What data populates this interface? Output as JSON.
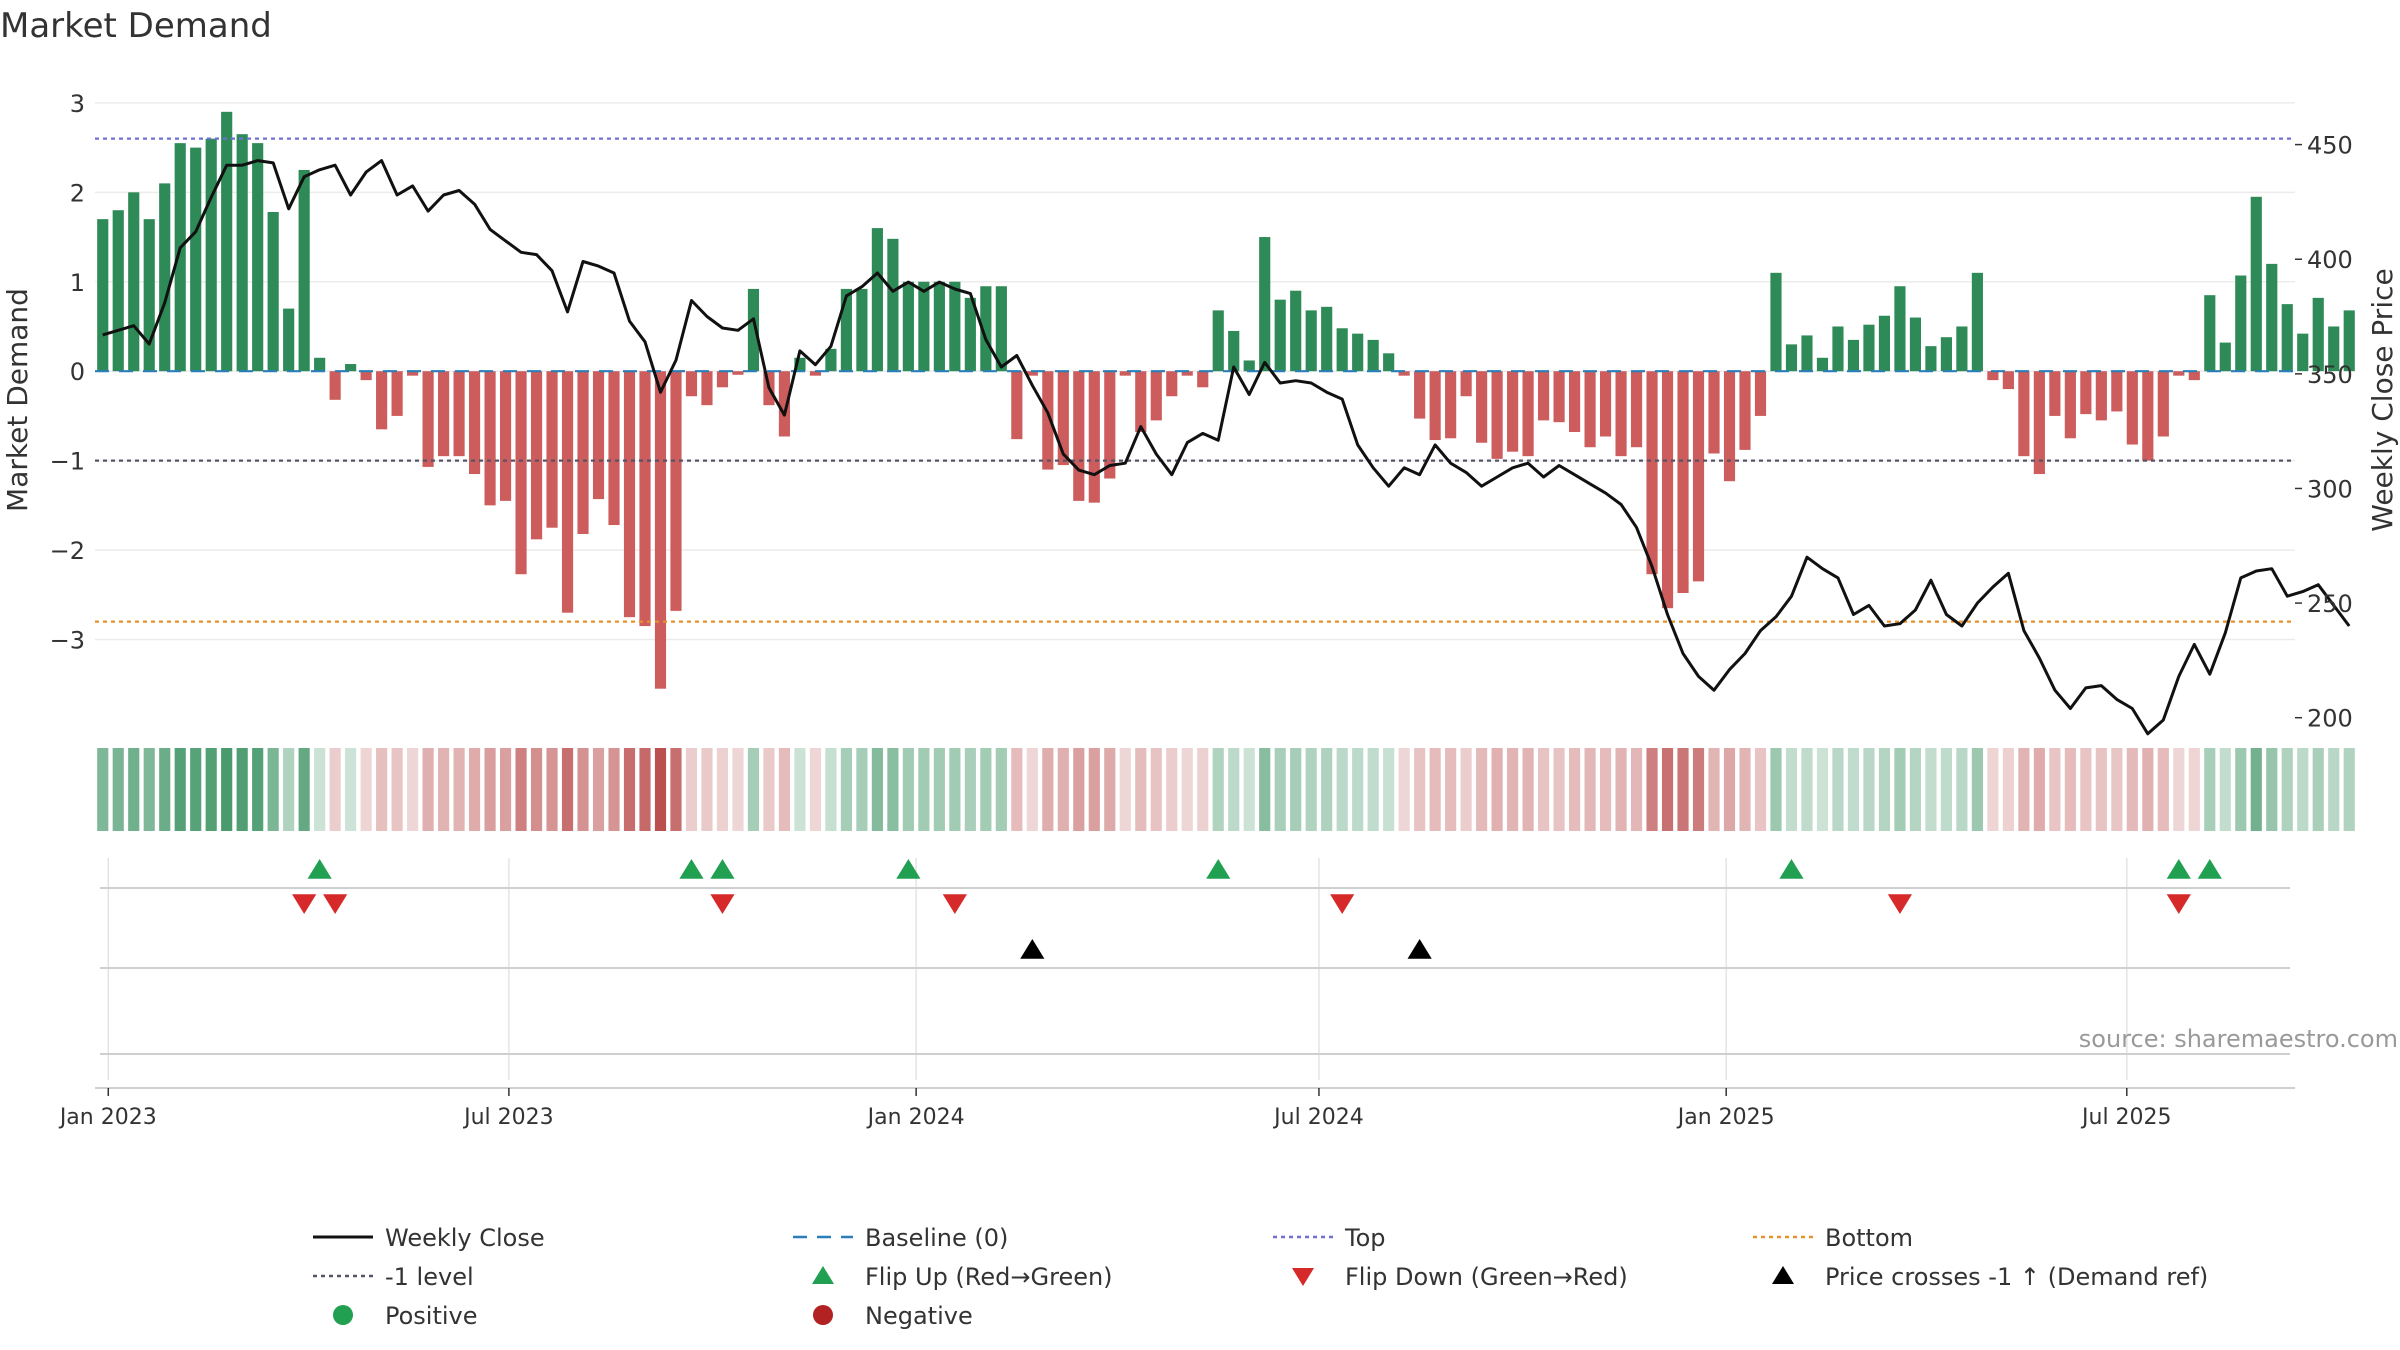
{
  "chart_data": {
    "type": "bar",
    "title": "Market Demand",
    "ylabel": "Market Demand",
    "y2label": "Weekly Close Price",
    "ylim": [
      -3.9,
      3.2
    ],
    "y2lim": [
      199,
      476
    ],
    "yticks": [
      3,
      2,
      1,
      0,
      -1,
      -2,
      -3
    ],
    "ytick_labels": [
      "3",
      "2",
      "1",
      "0",
      "−1",
      "−2",
      "−3"
    ],
    "y2ticks": [
      450,
      400,
      350,
      300,
      250,
      200
    ],
    "ytick2_labels": [
      "450",
      "400",
      "350",
      "300",
      "250",
      "200"
    ],
    "x_start": "2022-12-26",
    "x_end": "2025-09-15",
    "week_start": "2022-12-26",
    "x_ticks": [
      {
        "date": "2023-01-01",
        "label": "Jan 2023"
      },
      {
        "date": "2023-07-01",
        "label": "Jul 2023"
      },
      {
        "date": "2024-01-01",
        "label": "Jan 2024"
      },
      {
        "date": "2024-07-01",
        "label": "Jul 2024"
      },
      {
        "date": "2025-01-01",
        "label": "Jan 2025"
      },
      {
        "date": "2025-07-01",
        "label": "Jul 2025"
      }
    ],
    "reference_lines": {
      "top": 2.6,
      "minus_one": -1.0,
      "bottom": -2.8,
      "baseline": 0
    },
    "series": [
      {
        "name": "Market Demand",
        "values": [
          1.7,
          1.8,
          2.0,
          1.7,
          2.1,
          2.55,
          2.5,
          2.6,
          2.9,
          2.65,
          2.55,
          1.78,
          0.7,
          2.25,
          0.15,
          -0.32,
          0.08,
          -0.1,
          -0.65,
          -0.5,
          -0.05,
          -1.07,
          -0.95,
          -0.95,
          -1.15,
          -1.5,
          -1.45,
          -2.27,
          -1.88,
          -1.75,
          -2.7,
          -1.82,
          -1.43,
          -1.72,
          -2.75,
          -2.85,
          -3.55,
          -2.68,
          -0.28,
          -0.38,
          -0.18,
          -0.04,
          0.92,
          -0.38,
          -0.73,
          0.15,
          -0.05,
          0.25,
          0.92,
          0.92,
          1.6,
          1.48,
          1.0,
          1.0,
          1.0,
          1.0,
          0.82,
          0.95,
          0.95,
          -0.76,
          -0.05,
          -1.1,
          -1.05,
          -1.45,
          -1.47,
          -1.2,
          -0.05,
          -0.68,
          -0.55,
          -0.28,
          -0.05,
          -0.18,
          0.68,
          0.45,
          0.12,
          1.5,
          0.8,
          0.9,
          0.68,
          0.72,
          0.48,
          0.42,
          0.35,
          0.2,
          -0.05,
          -0.53,
          -0.77,
          -0.75,
          -0.28,
          -0.8,
          -0.98,
          -0.9,
          -0.95,
          -0.55,
          -0.57,
          -0.68,
          -0.85,
          -0.73,
          -0.95,
          -0.85,
          -2.27,
          -2.65,
          -2.48,
          -2.35,
          -0.92,
          -1.23,
          -0.88,
          -0.5,
          1.1,
          0.3,
          0.4,
          0.15,
          0.5,
          0.35,
          0.52,
          0.62,
          0.95,
          0.6,
          0.28,
          0.38,
          0.5,
          1.1,
          -0.1,
          -0.2,
          -0.95,
          -1.15,
          -0.5,
          -0.75,
          -0.48,
          -0.55,
          -0.45,
          -0.82,
          -1.0,
          -0.73,
          -0.05,
          -0.1,
          0.85,
          0.32,
          1.07,
          1.95,
          1.2,
          0.75,
          0.42,
          0.82,
          0.5,
          0.68
        ]
      },
      {
        "name": "Weekly Close",
        "values": [
          367,
          369,
          371,
          363,
          381,
          405,
          412,
          427,
          441,
          441,
          443,
          442,
          422,
          436,
          439,
          441,
          428,
          438,
          443,
          428,
          432,
          421,
          428,
          430,
          424,
          413,
          408,
          403,
          402,
          395,
          377,
          399,
          397,
          394,
          373,
          364,
          342,
          356,
          382,
          375,
          370,
          369,
          374,
          344,
          332,
          360,
          354,
          362,
          384,
          388,
          394,
          386,
          390,
          386,
          390,
          387,
          385,
          365,
          353,
          358,
          345,
          333,
          315,
          308,
          306,
          310,
          311,
          327,
          315,
          306,
          320,
          324,
          321,
          353,
          341,
          355,
          346,
          347,
          346,
          342,
          339,
          319,
          309,
          301,
          309,
          306,
          319,
          311,
          307,
          301,
          305,
          309,
          311,
          305,
          310,
          306,
          302,
          298,
          293,
          283,
          266,
          245,
          228,
          218,
          212,
          221,
          228,
          238,
          244,
          253,
          270,
          265,
          261,
          245,
          249,
          240,
          241,
          247,
          260,
          245,
          240,
          250,
          257,
          263,
          238,
          226,
          212,
          204,
          213,
          214,
          208,
          204,
          193,
          199,
          218,
          232,
          219,
          237,
          261,
          264,
          265,
          253,
          255,
          258,
          249,
          240
        ]
      }
    ],
    "markers": {
      "flip_up": [
        14,
        38,
        40,
        52,
        72,
        109,
        134,
        136
      ],
      "flip_down": [
        13,
        15,
        40,
        55,
        80,
        116,
        134
      ],
      "price_cross": [
        60,
        85
      ]
    },
    "legend": [
      {
        "key": "weekly_close",
        "label": "Weekly Close"
      },
      {
        "key": "baseline",
        "label": "Baseline (0)"
      },
      {
        "key": "top",
        "label": "Top"
      },
      {
        "key": "bottom",
        "label": "Bottom"
      },
      {
        "key": "minus_one",
        "label": "-1 level"
      },
      {
        "key": "flip_up",
        "label": "Flip Up (Red→Green)"
      },
      {
        "key": "flip_down",
        "label": "Flip Down (Green→Red)"
      },
      {
        "key": "price_cross",
        "label": "Price crosses -1 ↑ (Demand ref)"
      },
      {
        "key": "positive",
        "label": "Positive"
      },
      {
        "key": "negative",
        "label": "Negative"
      }
    ],
    "source": "source: sharemaestro.com"
  },
  "colors": {
    "positive": "#2e8b57",
    "negative": "#cd5c5c",
    "price": "#111111",
    "top": "#6f6fd6",
    "bottom": "#e8902a",
    "minus_one": "#555566",
    "baseline": "#2a7fb8",
    "flip_up": "#22a052",
    "flip_down": "#d62a2a",
    "price_cross": "#000000",
    "legend_positive": "#22a052",
    "legend_negative": "#b22222"
  }
}
